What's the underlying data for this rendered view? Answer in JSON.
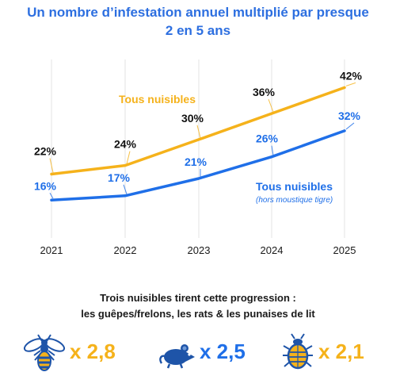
{
  "title": {
    "line1": "Un nombre d’infestation annuel multiplié par presque",
    "line2": "2 en 5 ans"
  },
  "colors": {
    "title": "#2d6fe0",
    "all_pests": "#f5b21b",
    "excl_tiger": "#1f6fe8",
    "grid": "#e3e3e3",
    "icon_blue": "#1e54a8"
  },
  "chart_data": {
    "type": "line",
    "x": [
      "2021",
      "2022",
      "2023",
      "2024",
      "2025"
    ],
    "ylim": [
      10,
      45
    ],
    "grid": "vertical",
    "series": [
      {
        "name": "Tous nuisibles",
        "note": "",
        "values": [
          22,
          24,
          30,
          36,
          42
        ],
        "labels": [
          "22%",
          "24%",
          "30%",
          "36%",
          "42%"
        ]
      },
      {
        "name": "Tous nuisibles",
        "note": "(hors moustique tigre)",
        "values": [
          16,
          17,
          21,
          26,
          32
        ],
        "labels": [
          "16%",
          "17%",
          "21%",
          "26%",
          "32%"
        ]
      }
    ]
  },
  "caption": {
    "line1": "Trois nuisibles tirent cette progression :",
    "line2": "les guêpes/frelons, les rats & les punaises de lit"
  },
  "pests": [
    {
      "icon": "wasp-icon",
      "multiplier": "x 2,8",
      "color": "#f5b21b"
    },
    {
      "icon": "rat-icon",
      "multiplier": "x 2,5",
      "color": "#1f6fe8"
    },
    {
      "icon": "bedbug-icon",
      "multiplier": "x 2,1",
      "color": "#f5b21b"
    }
  ]
}
